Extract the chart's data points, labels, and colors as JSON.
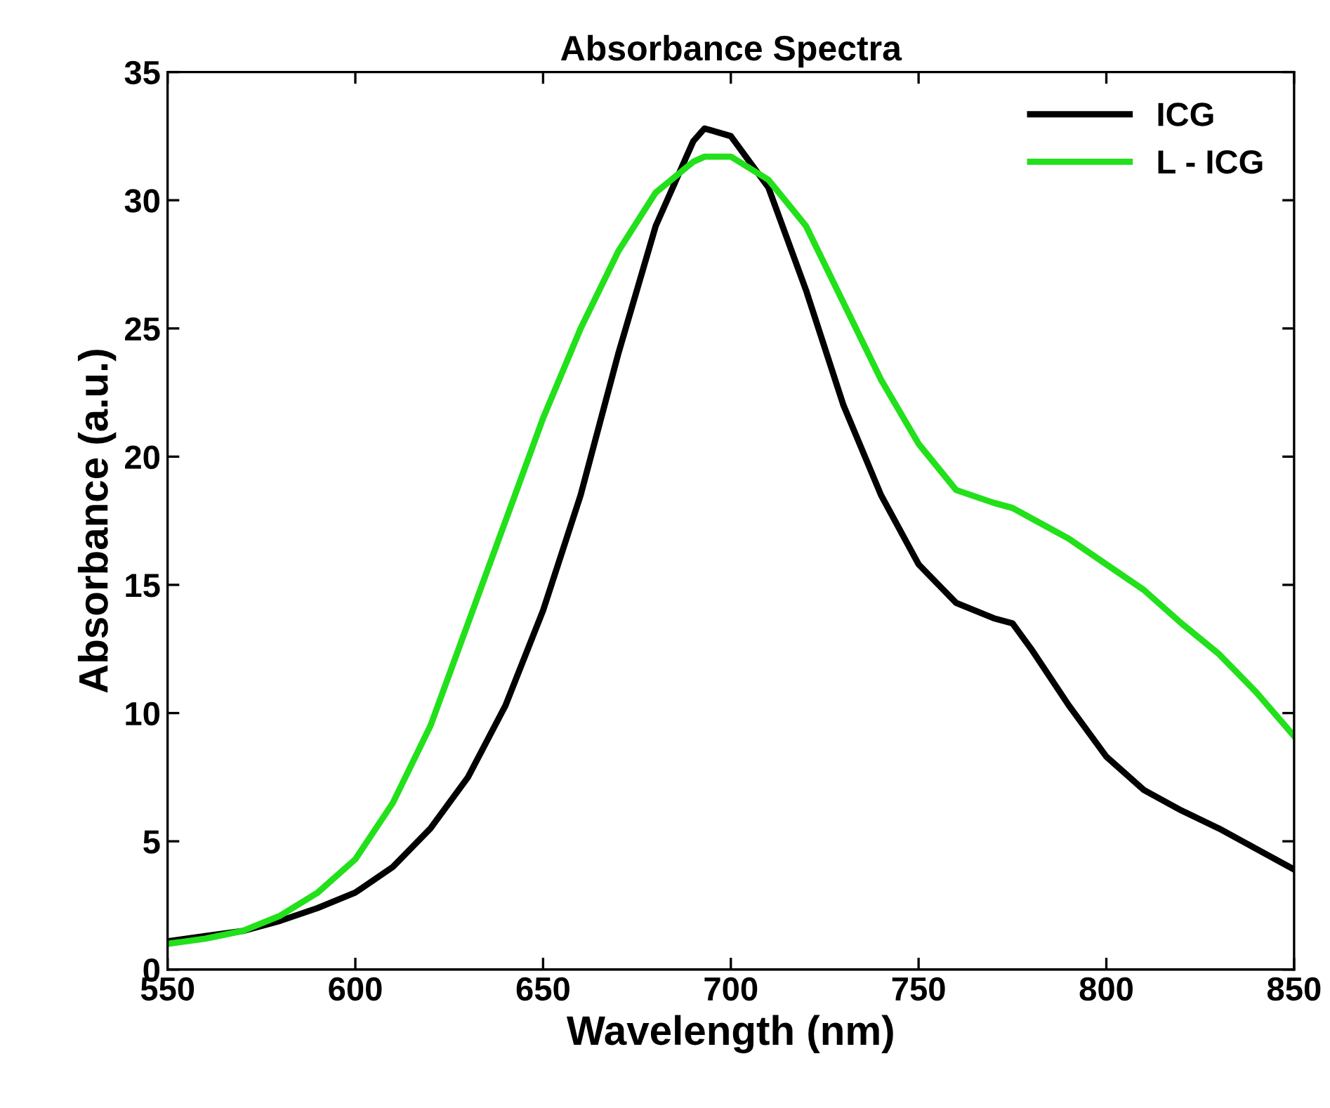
{
  "chart_data": {
    "type": "line",
    "title": "Absorbance Spectra",
    "xlabel": "Wavelength (nm)",
    "ylabel": "Absorbance (a.u.)",
    "x": [
      550,
      560,
      570,
      580,
      590,
      600,
      610,
      620,
      630,
      640,
      650,
      660,
      670,
      680,
      690,
      693,
      700,
      710,
      720,
      730,
      740,
      750,
      760,
      770,
      775,
      780,
      790,
      800,
      810,
      820,
      830,
      840,
      850
    ],
    "series": [
      {
        "name": "ICG",
        "color": "#000000",
        "values": [
          1.1,
          1.3,
          1.5,
          1.9,
          2.4,
          3.0,
          4.0,
          5.5,
          7.5,
          10.3,
          14.0,
          18.5,
          24.0,
          29.0,
          32.3,
          32.8,
          32.5,
          30.5,
          26.5,
          22.0,
          18.5,
          15.8,
          14.3,
          13.7,
          13.5,
          12.5,
          10.3,
          8.3,
          7.0,
          6.2,
          5.5,
          4.7,
          3.9
        ]
      },
      {
        "name": "L - ICG",
        "color": "#22e01a",
        "values": [
          1.0,
          1.2,
          1.5,
          2.1,
          3.0,
          4.3,
          6.5,
          9.5,
          13.5,
          17.5,
          21.5,
          25.0,
          28.0,
          30.3,
          31.5,
          31.7,
          31.7,
          30.8,
          29.0,
          26.0,
          23.0,
          20.5,
          18.7,
          18.2,
          18.0,
          17.6,
          16.8,
          15.8,
          14.8,
          13.5,
          12.3,
          10.8,
          9.1
        ]
      }
    ],
    "xlim": [
      550,
      850
    ],
    "xticks": [
      550,
      600,
      650,
      700,
      750,
      800,
      850
    ],
    "ylim": [
      0,
      35
    ],
    "yticks": [
      0,
      5,
      10,
      15,
      20,
      25,
      30,
      35
    ],
    "grid": false,
    "legend": "top right",
    "line_style": "solid",
    "marker": "none"
  }
}
